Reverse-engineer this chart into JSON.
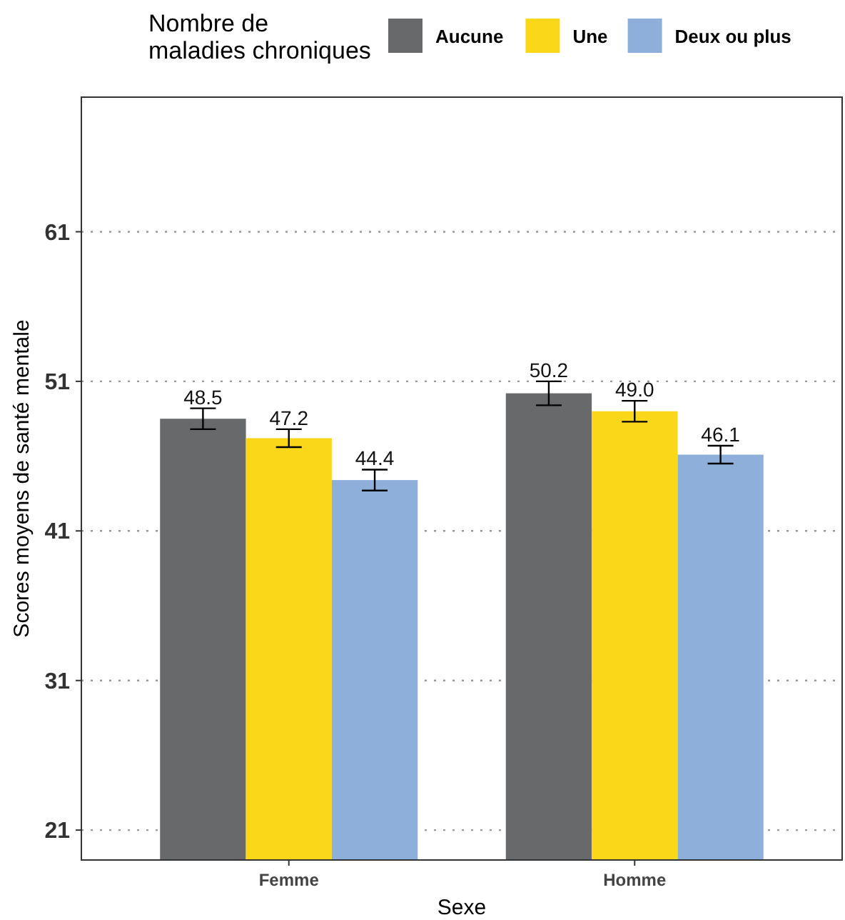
{
  "chart_data": {
    "type": "bar",
    "xlabel": "Sexe",
    "ylabel": "Scores moyens de santé mentale",
    "legend_title": "Nombre de\nmaladies chroniques",
    "categories": [
      "Femme",
      "Homme"
    ],
    "series": [
      {
        "name": "Aucune",
        "color": "#68696b",
        "values": [
          48.5,
          50.2
        ],
        "value_labels": [
          "48.5",
          "50.2"
        ],
        "errors": [
          0.7,
          0.8
        ]
      },
      {
        "name": "Une",
        "color": "#fad819",
        "values": [
          47.2,
          49.0
        ],
        "value_labels": [
          "47.2",
          "49.0"
        ],
        "errors": [
          0.6,
          0.7
        ]
      },
      {
        "name": "Deux ou plus",
        "color": "#8fafdb",
        "values": [
          44.4,
          46.1
        ],
        "value_labels": [
          "44.4",
          "46.1"
        ],
        "errors": [
          0.7,
          0.6
        ]
      }
    ],
    "ylim": [
      19,
      70
    ],
    "yticks": [
      21,
      31,
      41,
      51,
      61
    ],
    "grid": "y",
    "legend": "top"
  }
}
